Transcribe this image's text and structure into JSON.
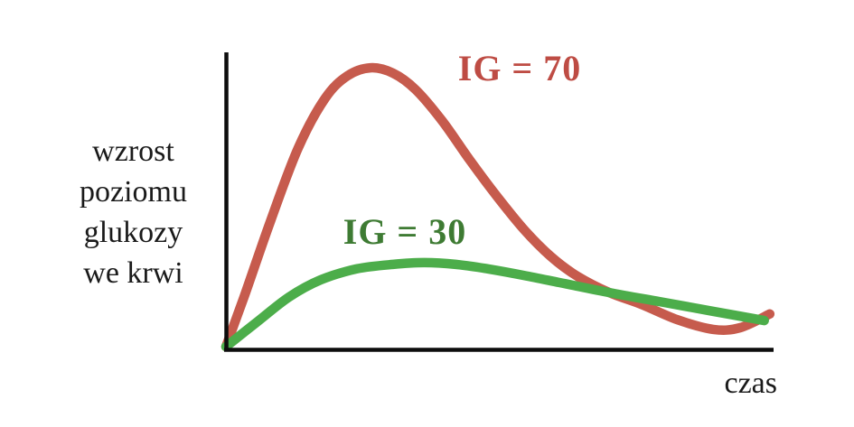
{
  "labels": {
    "y_axis_multiline": "wzrost\npoziomu\nglukozy\nwe krwi",
    "x_axis": "czas"
  },
  "colors": {
    "background": "#ffffff",
    "axis": "#0d0d0d",
    "text": "#1a1a1a",
    "ig70_curve": "#c65b4d",
    "ig70_label": "#be4c44",
    "ig30_curve": "#4cad4a",
    "ig30_label": "#3e7b33"
  },
  "chart_data": {
    "type": "line",
    "title": "",
    "xlabel": "czas",
    "ylabel": "wzrost poziomu glukozy we krwi",
    "xlim": [
      0,
      1
    ],
    "ylim": [
      0,
      1
    ],
    "grid": false,
    "ticks": "none",
    "legend_position": "inline-annotations",
    "series": [
      {
        "name": "IG = 70",
        "color": "#c65b4d",
        "label_color": "#be4c44",
        "points": [
          [
            0.0,
            0.006
          ],
          [
            0.033,
            0.173
          ],
          [
            0.082,
            0.432
          ],
          [
            0.132,
            0.675
          ],
          [
            0.181,
            0.842
          ],
          [
            0.222,
            0.918
          ],
          [
            0.264,
            0.945
          ],
          [
            0.305,
            0.927
          ],
          [
            0.346,
            0.872
          ],
          [
            0.395,
            0.766
          ],
          [
            0.445,
            0.635
          ],
          [
            0.494,
            0.514
          ],
          [
            0.544,
            0.401
          ],
          [
            0.593,
            0.31
          ],
          [
            0.642,
            0.243
          ],
          [
            0.7,
            0.188
          ],
          [
            0.758,
            0.149
          ],
          [
            0.824,
            0.097
          ],
          [
            0.89,
            0.064
          ],
          [
            0.939,
            0.07
          ],
          [
            0.993,
            0.116
          ]
        ]
      },
      {
        "name": "IG = 30",
        "color": "#4cad4a",
        "label_color": "#3e7b33",
        "points": [
          [
            0.0,
            0.006
          ],
          [
            0.058,
            0.091
          ],
          [
            0.115,
            0.173
          ],
          [
            0.173,
            0.231
          ],
          [
            0.239,
            0.268
          ],
          [
            0.305,
            0.283
          ],
          [
            0.362,
            0.289
          ],
          [
            0.42,
            0.283
          ],
          [
            0.478,
            0.268
          ],
          [
            0.544,
            0.246
          ],
          [
            0.609,
            0.222
          ],
          [
            0.7,
            0.188
          ],
          [
            0.791,
            0.158
          ],
          [
            0.89,
            0.125
          ],
          [
            0.983,
            0.094
          ]
        ]
      }
    ]
  }
}
